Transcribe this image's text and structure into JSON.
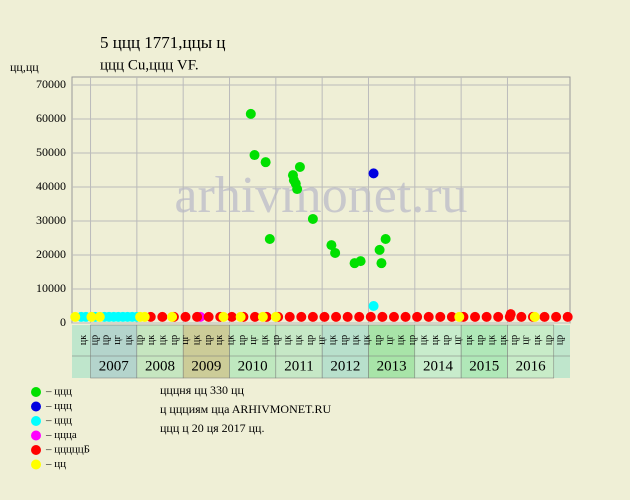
{
  "chart_data": {
    "type": "scatter",
    "title": "5 ццц 1771,ццы ц",
    "subtitle": "ццц Cu,ццц VF.",
    "y_label": "цц,цц",
    "watermark": "arhivmonet.ru",
    "xlim": [
      2006.6,
      2017.35
    ],
    "ylim": [
      0,
      70000
    ],
    "yticks": [
      0,
      10000,
      20000,
      30000,
      40000,
      50000,
      60000,
      70000
    ],
    "grid": true,
    "years": [
      2007,
      2008,
      2009,
      2010,
      2011,
      2012,
      2013,
      2014,
      2015,
      2016
    ],
    "year_colors": [
      "#b4d4cc",
      "#c6e6c0",
      "#cccc98",
      "#bfe8bf",
      "#c6e8c6",
      "#b8e0cc",
      "#a8e4a8",
      "#c8eccc",
      "#b0e8b8",
      "#c8ecc8"
    ],
    "edge_color": "#bfe6cc",
    "period_labels": [
      "цк",
      "цр",
      "цр",
      "цг",
      "цк",
      "цр",
      "цк",
      "цк",
      "цр",
      "цг",
      "цк",
      "цр",
      "цк",
      "цк",
      "цр",
      "цг",
      "цк",
      "цр",
      "цк",
      "цк",
      "цр",
      "цг",
      "цк",
      "цр",
      "цк",
      "цк",
      "цр",
      "цг",
      "цк",
      "цр",
      "цк",
      "цк",
      "цр",
      "цг",
      "цк",
      "цр",
      "цк",
      "цк",
      "цр",
      "цг",
      "цк",
      "цр",
      "цр"
    ],
    "series": [
      {
        "name": "– ццц",
        "color": "#00e000",
        "x": [
          2010.46,
          2010.54,
          2010.78,
          2010.87,
          2011.37,
          2011.39,
          2011.43,
          2011.46,
          2011.52,
          2011.8,
          2012.2,
          2012.28,
          2012.7,
          2012.83,
          2013.24,
          2013.28,
          2013.37
        ],
        "values": [
          61500,
          49400,
          47300,
          24700,
          43500,
          42000,
          41000,
          39400,
          45900,
          30600,
          22900,
          20600,
          17600,
          18200,
          21500,
          17600,
          24700
        ]
      },
      {
        "name": "– ццц",
        "color": "#0000e0",
        "x": [
          2013.11
        ],
        "values": [
          44000
        ]
      },
      {
        "name": "– ццц",
        "color": "#00ffff",
        "x": [
          2006.8,
          2006.9,
          2007.1,
          2007.3,
          2007.4,
          2007.5,
          2007.6,
          2007.7,
          2007.8,
          2007.9,
          2008.0,
          2013.11
        ],
        "values": [
          1800,
          1800,
          1800,
          1800,
          1800,
          1800,
          1800,
          1800,
          1800,
          1800,
          1800,
          5000
        ]
      },
      {
        "name": "– ццца",
        "color": "#ff00ff",
        "x": [
          2009.37
        ],
        "values": [
          1800
        ]
      },
      {
        "name": "– цццццБ",
        "color": "#ff0000",
        "x": [
          2008.3,
          2008.55,
          2008.8,
          2009.05,
          2009.3,
          2009.55,
          2009.8,
          2010.05,
          2010.3,
          2010.55,
          2010.8,
          2011.05,
          2011.3,
          2011.55,
          2011.8,
          2012.05,
          2012.3,
          2012.55,
          2012.8,
          2013.05,
          2013.3,
          2013.55,
          2013.8,
          2014.05,
          2014.3,
          2014.55,
          2014.8,
          2015.05,
          2015.3,
          2015.55,
          2015.8,
          2016.05,
          2016.07,
          2016.3,
          2016.55,
          2016.8,
          2017.05,
          2017.3
        ],
        "values": [
          1800,
          1800,
          1800,
          1800,
          1800,
          1800,
          1800,
          1800,
          1800,
          1800,
          1800,
          1800,
          1800,
          1800,
          1800,
          1800,
          1800,
          1800,
          1800,
          1800,
          1800,
          1800,
          1800,
          1800,
          1800,
          1800,
          1800,
          1800,
          1800,
          1800,
          1800,
          1800,
          2600,
          1800,
          1800,
          1800,
          1800,
          1800
        ]
      },
      {
        "name": "– цц",
        "color": "#ffff00",
        "x": [
          2006.67,
          2007.02,
          2007.2,
          2008.07,
          2008.17,
          2008.76,
          2009.87,
          2010.24,
          2010.72,
          2011.0,
          2014.96,
          2016.59
        ],
        "values": [
          1800,
          1800,
          1800,
          1800,
          1800,
          1800,
          1800,
          1800,
          1800,
          1800,
          1800,
          1800
        ]
      }
    ],
    "footer": [
      "цццня цц 330 цц",
      "ц ццциям ццa ARHIVMONET.RU",
      "ццц ц 20 ця 2017 цц."
    ]
  }
}
